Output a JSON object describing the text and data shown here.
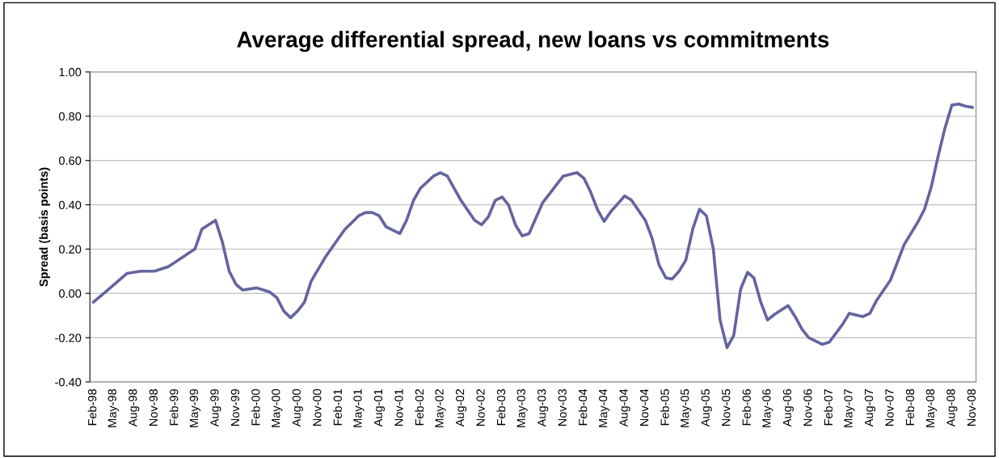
{
  "chart_data": {
    "type": "line",
    "title": "Average differential spread, new loans vs commitments",
    "ylabel": "Spread (basis points)",
    "x": [
      "1998-02",
      "1998-04",
      "1998-07",
      "1998-09",
      "1998-11",
      "1999-01",
      "1999-02",
      "1999-04",
      "1999-05",
      "1999-06",
      "1999-07",
      "1999-08",
      "1999-09",
      "1999-10",
      "1999-11",
      "1999-12",
      "2000-02",
      "2000-04",
      "2000-05",
      "2000-06",
      "2000-07",
      "2000-08",
      "2000-09",
      "2000-10",
      "2000-12",
      "2001-02",
      "2001-03",
      "2001-04",
      "2001-05",
      "2001-06",
      "2001-07",
      "2001-08",
      "2001-09",
      "2001-11",
      "2001-12",
      "2002-01",
      "2002-02",
      "2002-04",
      "2002-05",
      "2002-06",
      "2002-07",
      "2002-08",
      "2002-10",
      "2002-11",
      "2002-12",
      "2003-01",
      "2003-02",
      "2003-03",
      "2003-04",
      "2003-05",
      "2003-06",
      "2003-08",
      "2003-10",
      "2003-11",
      "2004-01",
      "2004-02",
      "2004-03",
      "2004-04",
      "2004-05",
      "2004-06",
      "2004-08",
      "2004-09",
      "2004-11",
      "2004-12",
      "2005-01",
      "2005-02",
      "2005-03",
      "2005-04",
      "2005-05",
      "2005-06",
      "2005-07",
      "2005-08",
      "2005-09",
      "2005-10",
      "2005-11",
      "2005-12",
      "2006-01",
      "2006-02",
      "2006-03",
      "2006-04",
      "2006-05",
      "2006-06",
      "2006-08",
      "2006-09",
      "2006-10",
      "2006-11",
      "2007-01",
      "2007-02",
      "2007-04",
      "2007-05",
      "2007-07",
      "2007-08",
      "2007-09",
      "2007-11",
      "2008-01",
      "2008-03",
      "2008-04",
      "2008-05",
      "2008-06",
      "2008-07",
      "2008-08",
      "2008-09",
      "2008-10",
      "2008-11"
    ],
    "series": [
      {
        "color": "#6464a0",
        "values": [
          -0.04,
          0.01,
          0.09,
          0.1,
          0.1,
          0.12,
          0.14,
          0.18,
          0.2,
          0.29,
          0.31,
          0.33,
          0.23,
          0.1,
          0.04,
          0.015,
          0.025,
          0.005,
          -0.02,
          -0.08,
          -0.11,
          -0.08,
          -0.04,
          0.055,
          0.16,
          0.25,
          0.29,
          0.32,
          0.35,
          0.365,
          0.365,
          0.35,
          0.3,
          0.27,
          0.33,
          0.42,
          0.475,
          0.53,
          0.545,
          0.53,
          0.475,
          0.42,
          0.33,
          0.31,
          0.345,
          0.42,
          0.435,
          0.4,
          0.31,
          0.26,
          0.27,
          0.41,
          0.49,
          0.53,
          0.545,
          0.52,
          0.46,
          0.38,
          0.325,
          0.37,
          0.44,
          0.42,
          0.33,
          0.25,
          0.13,
          0.07,
          0.065,
          0.1,
          0.15,
          0.29,
          0.38,
          0.35,
          0.2,
          -0.12,
          -0.245,
          -0.19,
          0.02,
          0.095,
          0.07,
          -0.04,
          -0.12,
          -0.095,
          -0.055,
          -0.105,
          -0.16,
          -0.2,
          -0.23,
          -0.22,
          -0.14,
          -0.09,
          -0.105,
          -0.09,
          -0.03,
          0.06,
          0.22,
          0.32,
          0.38,
          0.48,
          0.62,
          0.745,
          0.85,
          0.855,
          0.845,
          0.84
        ]
      }
    ],
    "xlim": [
      "1998-01-17",
      "2008-11-17"
    ],
    "xticks": [
      {
        "value": "1998-02",
        "label": "Feb-98"
      },
      {
        "value": "1998-05",
        "label": "May-98"
      },
      {
        "value": "1998-08",
        "label": "Aug-98"
      },
      {
        "value": "1998-11",
        "label": "Nov-98"
      },
      {
        "value": "1999-02",
        "label": "Feb-99"
      },
      {
        "value": "1999-05",
        "label": "May-99"
      },
      {
        "value": "1999-08",
        "label": "Aug-99"
      },
      {
        "value": "1999-11",
        "label": "Nov-99"
      },
      {
        "value": "2000-02",
        "label": "Feb-00"
      },
      {
        "value": "2000-05",
        "label": "May-00"
      },
      {
        "value": "2000-08",
        "label": "Aug-00"
      },
      {
        "value": "2000-11",
        "label": "Nov-00"
      },
      {
        "value": "2001-02",
        "label": "Feb-01"
      },
      {
        "value": "2001-05",
        "label": "May-01"
      },
      {
        "value": "2001-08",
        "label": "Aug-01"
      },
      {
        "value": "2001-11",
        "label": "Nov-01"
      },
      {
        "value": "2002-02",
        "label": "Feb-02"
      },
      {
        "value": "2002-05",
        "label": "May-02"
      },
      {
        "value": "2002-08",
        "label": "Aug-02"
      },
      {
        "value": "2002-11",
        "label": "Nov-02"
      },
      {
        "value": "2003-02",
        "label": "Feb-03"
      },
      {
        "value": "2003-05",
        "label": "May-03"
      },
      {
        "value": "2003-08",
        "label": "Aug-03"
      },
      {
        "value": "2003-11",
        "label": "Nov-03"
      },
      {
        "value": "2004-02",
        "label": "Feb-04"
      },
      {
        "value": "2004-05",
        "label": "May-04"
      },
      {
        "value": "2004-08",
        "label": "Aug-04"
      },
      {
        "value": "2004-11",
        "label": "Nov-04"
      },
      {
        "value": "2005-02",
        "label": "Feb-05"
      },
      {
        "value": "2005-05",
        "label": "May-05"
      },
      {
        "value": "2005-08",
        "label": "Aug-05"
      },
      {
        "value": "2005-11",
        "label": "Nov-05"
      },
      {
        "value": "2006-02",
        "label": "Feb-06"
      },
      {
        "value": "2006-05",
        "label": "May-06"
      },
      {
        "value": "2006-08",
        "label": "Aug-06"
      },
      {
        "value": "2006-11",
        "label": "Nov-06"
      },
      {
        "value": "2007-02",
        "label": "Feb-07"
      },
      {
        "value": "2007-05",
        "label": "May-07"
      },
      {
        "value": "2007-08",
        "label": "Aug-07"
      },
      {
        "value": "2007-11",
        "label": "Nov-07"
      },
      {
        "value": "2008-02",
        "label": "Feb-08"
      },
      {
        "value": "2008-05",
        "label": "May-08"
      },
      {
        "value": "2008-08",
        "label": "Aug-08"
      },
      {
        "value": "2008-11",
        "label": "Nov-08"
      }
    ],
    "ylim": [
      -0.4,
      1.0
    ],
    "yticks": [
      {
        "value": -0.4,
        "label": "-0.40"
      },
      {
        "value": -0.2,
        "label": "-0.20"
      },
      {
        "value": 0,
        "label": "0.00"
      },
      {
        "value": 0.2,
        "label": "0.20"
      },
      {
        "value": 0.4,
        "label": "0.40"
      },
      {
        "value": 0.6,
        "label": "0.60"
      },
      {
        "value": 0.8,
        "label": "0.80"
      },
      {
        "value": 1.0,
        "label": "1.00"
      }
    ],
    "grid": "y",
    "legend": false,
    "marker": "none",
    "line_style": "solid"
  }
}
